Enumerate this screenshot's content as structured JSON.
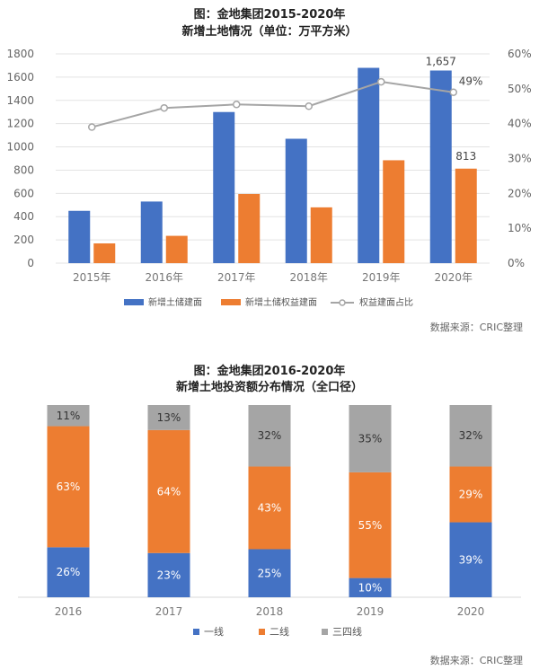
{
  "chart_data": [
    {
      "type": "bar",
      "title_line1": "图：金地集团2015-2020年",
      "title_line2": "新增土地情况（单位：万平方米）",
      "categories": [
        "2015年",
        "2016年",
        "2017年",
        "2018年",
        "2019年",
        "2020年"
      ],
      "series": [
        {
          "name": "新增土储建面",
          "type": "bar",
          "axis": "left",
          "color": "#4472C4",
          "values": [
            450,
            530,
            1300,
            1070,
            1680,
            1657
          ]
        },
        {
          "name": "新增土储权益建面",
          "type": "bar",
          "axis": "left",
          "color": "#ED7D31",
          "values": [
            170,
            235,
            595,
            480,
            885,
            813
          ]
        },
        {
          "name": "权益建面占比",
          "type": "line",
          "axis": "right",
          "color": "#A5A5A5",
          "values": [
            39,
            44.5,
            45.5,
            45,
            52,
            49
          ]
        }
      ],
      "data_labels": {
        "bar_2020": "1,657",
        "bar2_2020": "813",
        "line_2020": "49%"
      },
      "y_left": {
        "min": 0,
        "max": 1800,
        "ticks": [
          "0",
          "200",
          "400",
          "600",
          "800",
          "1000",
          "1200",
          "1400",
          "1600",
          "1800"
        ]
      },
      "y_right": {
        "min": 0,
        "max": 60,
        "ticks": [
          "0%",
          "10%",
          "20%",
          "30%",
          "40%",
          "50%",
          "60%"
        ]
      },
      "legend_position": "bottom",
      "source": "数据来源：CRIC整理"
    },
    {
      "type": "bar",
      "stacked": true,
      "percent": true,
      "title_line1": "图：金地集团2016-2020年",
      "title_line2": "新增土地投资额分布情况（全口径）",
      "categories": [
        "2016",
        "2017",
        "2018",
        "2019",
        "2020"
      ],
      "series": [
        {
          "name": "一线",
          "color": "#4472C4",
          "values": [
            26,
            23,
            25,
            10,
            39
          ],
          "labels": [
            "26%",
            "23%",
            "25%",
            "10%",
            "39%"
          ]
        },
        {
          "name": "二线",
          "color": "#ED7D31",
          "values": [
            63,
            64,
            43,
            55,
            29
          ],
          "labels": [
            "63%",
            "64%",
            "43%",
            "55%",
            "29%"
          ]
        },
        {
          "name": "三四线",
          "color": "#A5A5A5",
          "values": [
            11,
            13,
            32,
            35,
            32
          ],
          "labels": [
            "11%",
            "13%",
            "32%",
            "35%",
            "32%"
          ]
        }
      ],
      "legend_position": "bottom",
      "source": "数据来源：CRIC整理"
    }
  ]
}
